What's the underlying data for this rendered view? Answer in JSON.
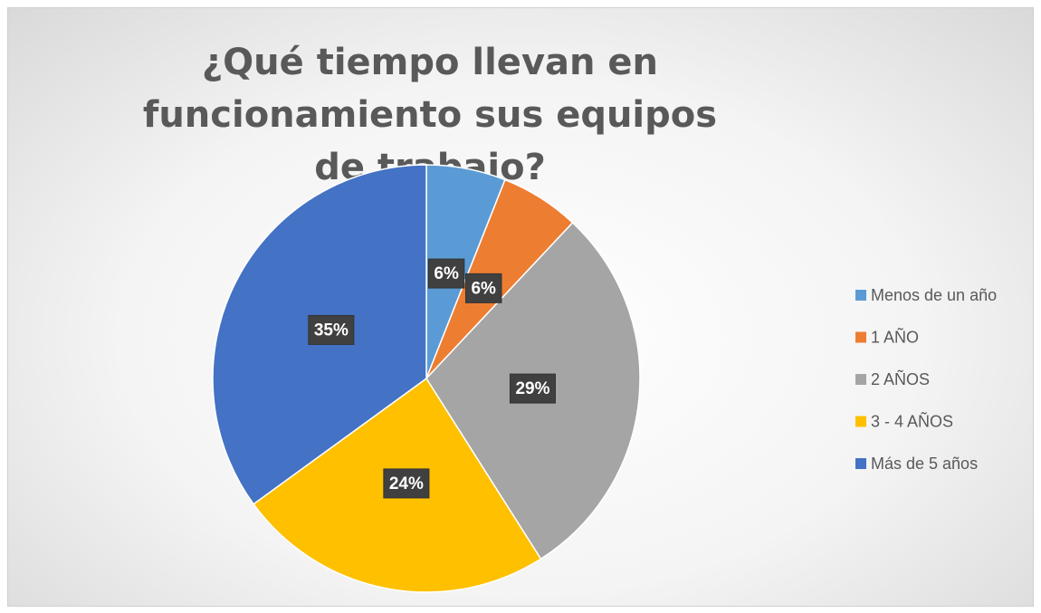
{
  "chart_data": {
    "type": "pie",
    "title": "¿Qué tiempo llevan en funcionamiento sus equipos de trabajo?",
    "categories": [
      "Menos de un año",
      "1 AÑO",
      "2 AÑOS",
      "3 - 4 AÑOS",
      "Más de 5 años"
    ],
    "values": [
      6,
      6,
      29,
      24,
      35
    ],
    "value_labels": [
      "6%",
      "6%",
      "29%",
      "24%",
      "35%"
    ],
    "colors": [
      "#5b9bd5",
      "#ed7d31",
      "#a5a5a5",
      "#ffc000",
      "#4472c4"
    ],
    "legend": "right"
  }
}
